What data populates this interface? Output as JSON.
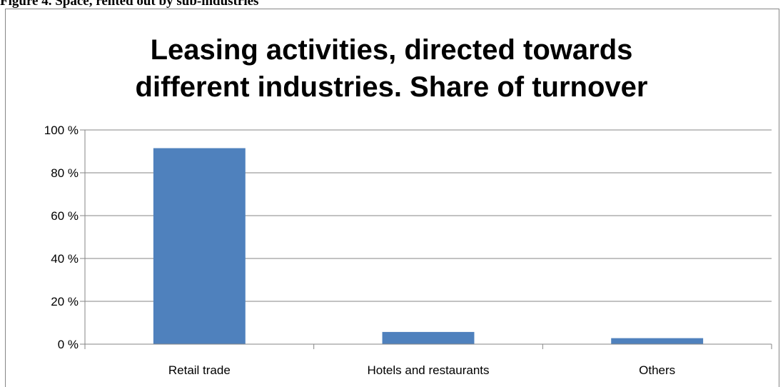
{
  "caption": "Figure 4. Space, rented out by sub-industries",
  "chart_data": {
    "type": "bar",
    "title_lines": [
      "Leasing activities, directed towards",
      "different industries. Share of turnover"
    ],
    "categories": [
      "Retail trade",
      "Hotels and restaurants",
      "Others"
    ],
    "values": [
      91.5,
      5.7,
      2.8
    ],
    "ylim": [
      0,
      100
    ],
    "yticks": [
      0,
      20,
      40,
      60,
      80,
      100
    ],
    "ytick_labels": [
      "0 %",
      "20 %",
      "40 %",
      "60 %",
      "80 %",
      "100 %"
    ],
    "xlabel": "",
    "ylabel": "",
    "grid": true,
    "legend": "none",
    "bar_color": "#4f81bd",
    "grid_color": "#868686"
  }
}
